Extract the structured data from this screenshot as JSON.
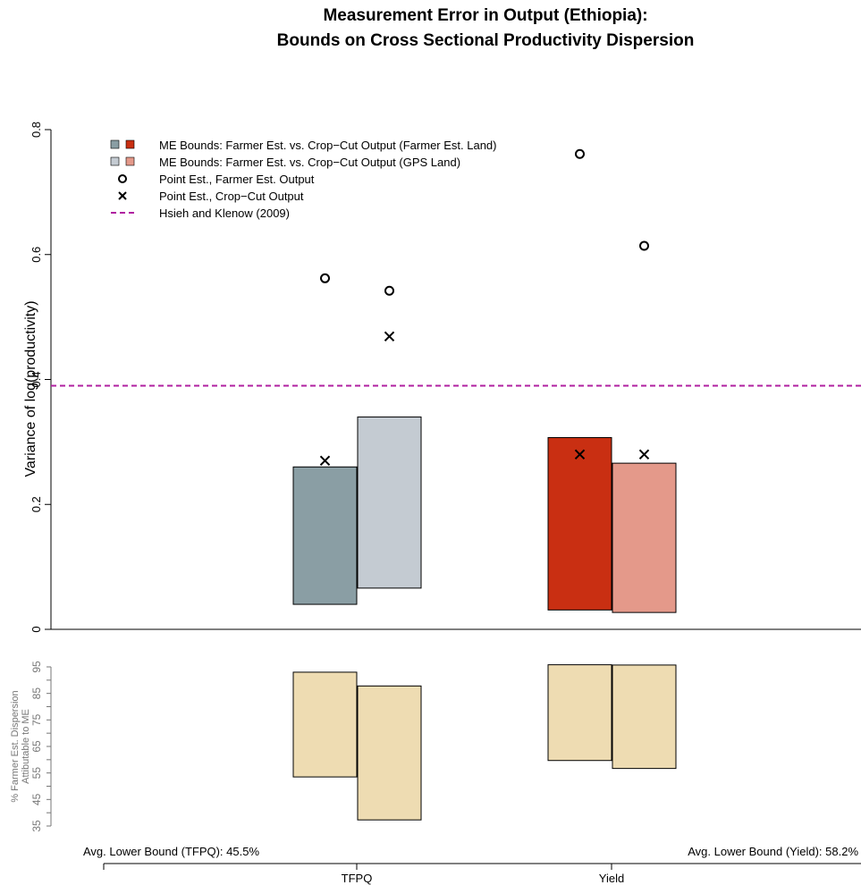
{
  "chart_data": [
    {
      "type": "bar",
      "title": "Measurement Error in Output (Ethiopia):",
      "subtitle": "Bounds on Cross Sectional Productivity Dispersion",
      "ylabel": "Variance of log(productivity)",
      "ylim": [
        0,
        0.8
      ],
      "yticks": [
        "0",
        "0.2",
        "0.4",
        "0.6",
        "0.8"
      ],
      "reference_line": {
        "name": "Hsieh and Klenow (2009)",
        "value": 0.39,
        "color": "#B020A0"
      },
      "legend": [
        {
          "label": "ME Bounds: Farmer Est. vs. Crop−Cut Output (Farmer Est. Land)",
          "marker": "squares",
          "colors": [
            "#8A9EA4",
            "#C92F12"
          ]
        },
        {
          "label": "ME Bounds: Farmer Est. vs. Crop−Cut Output (GPS Land)",
          "marker": "squares",
          "colors": [
            "#C4CBD2",
            "#E4998A"
          ]
        },
        {
          "label": "Point Est., Farmer Est. Output",
          "marker": "circle"
        },
        {
          "label": "Point Est., Crop−Cut Output",
          "marker": "cross"
        },
        {
          "label": "Hsieh and Klenow (2009)",
          "marker": "dashed-line"
        }
      ],
      "legend_position": "top-left",
      "bars": [
        {
          "category": "TFPQ",
          "land": "Farmer Est. Land",
          "low": 0.04,
          "high": 0.26,
          "color": "#8A9EA4",
          "circle": 0.562,
          "cross": 0.27
        },
        {
          "category": "TFPQ",
          "land": "GPS Land",
          "low": 0.066,
          "high": 0.34,
          "color": "#C4CBD2",
          "circle": 0.542,
          "cross": 0.469
        },
        {
          "category": "Yield",
          "land": "Farmer Est. Land",
          "low": 0.031,
          "high": 0.307,
          "color": "#C92F12",
          "circle": 0.761,
          "cross": 0.28
        },
        {
          "category": "Yield",
          "land": "GPS Land",
          "low": 0.027,
          "high": 0.266,
          "color": "#E4998A",
          "circle": 0.614,
          "cross": 0.28
        }
      ]
    },
    {
      "type": "bar",
      "ylabel_line1": "% Farmer Est. Dispersion",
      "ylabel_line2": "Attibutable to ME",
      "ylim": [
        35,
        95
      ],
      "yticks": [
        "35",
        "45",
        "55",
        "65",
        "75",
        "85",
        "95"
      ],
      "ytick_values": [
        35,
        40,
        45,
        50,
        55,
        60,
        65,
        70,
        75,
        80,
        85,
        90,
        95
      ],
      "color": "#EEDCB2",
      "bars": [
        {
          "category": "TFPQ",
          "land": "Farmer Est. Land",
          "low": 53.5,
          "high": 93.0
        },
        {
          "category": "TFPQ",
          "land": "GPS Land",
          "low": 37.3,
          "high": 87.8
        },
        {
          "category": "Yield",
          "land": "Farmer Est. Land",
          "low": 59.7,
          "high": 95.8
        },
        {
          "category": "Yield",
          "land": "GPS Land",
          "low": 56.7,
          "high": 95.7
        }
      ],
      "annotations": {
        "tfpq": "Avg. Lower Bound (TFPQ): 45.5%",
        "yield": "Avg. Lower Bound (Yield): 58.2%"
      },
      "categories": [
        "TFPQ",
        "Yield"
      ]
    }
  ]
}
